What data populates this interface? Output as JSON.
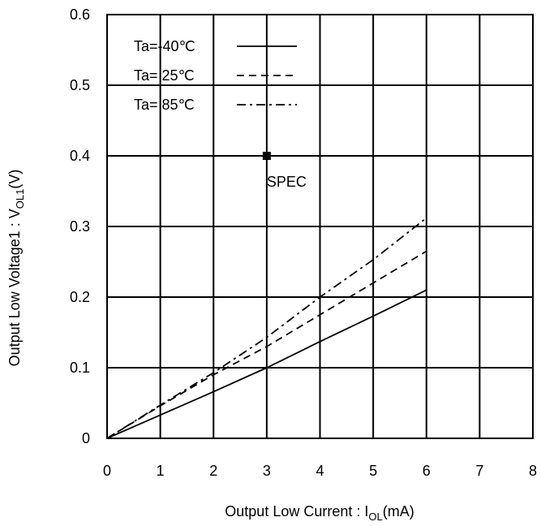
{
  "chart_data": {
    "type": "line",
    "title": "",
    "xlabel": {
      "pre": "Output Low Current : I",
      "sub": "OL",
      "post": "(mA)"
    },
    "ylabel": {
      "pre": "Output Low Voltage1 : V",
      "sub": "OL1",
      "post": "(V)"
    },
    "xlim": [
      0,
      8
    ],
    "ylim": [
      0,
      0.6
    ],
    "xticks": [
      0,
      1,
      2,
      3,
      4,
      5,
      6,
      7,
      8
    ],
    "xtick_labels": [
      "0",
      "1",
      "2",
      "3",
      "4",
      "5",
      "6",
      "7",
      "8"
    ],
    "yticks": [
      0,
      0.1,
      0.2,
      0.3,
      0.4,
      0.5,
      0.6
    ],
    "ytick_labels": [
      "0",
      "0.1",
      "0.2",
      "0.3",
      "0.4",
      "0.5",
      "0.6"
    ],
    "grid": true,
    "legend_position": "top-left",
    "series": [
      {
        "name": "Ta=-40℃",
        "dash": "solid",
        "x": [
          0,
          1,
          2,
          3,
          4,
          5,
          6
        ],
        "y": [
          0,
          0.033,
          0.066,
          0.1,
          0.137,
          0.173,
          0.21
        ]
      },
      {
        "name": "Ta= 25℃",
        "dash": "dashed",
        "x": [
          0,
          1,
          2,
          3,
          4,
          5,
          6
        ],
        "y": [
          0,
          0.046,
          0.09,
          0.13,
          0.175,
          0.22,
          0.265
        ]
      },
      {
        "name": "Ta= 85℃",
        "dash": "dashdot",
        "x": [
          0,
          1,
          2,
          3,
          4,
          5,
          6
        ],
        "y": [
          0,
          0.047,
          0.093,
          0.143,
          0.2,
          0.253,
          0.312
        ]
      }
    ],
    "annotations": [
      {
        "type": "point",
        "x": 3,
        "y": 0.4,
        "text": "SPEC"
      }
    ]
  }
}
